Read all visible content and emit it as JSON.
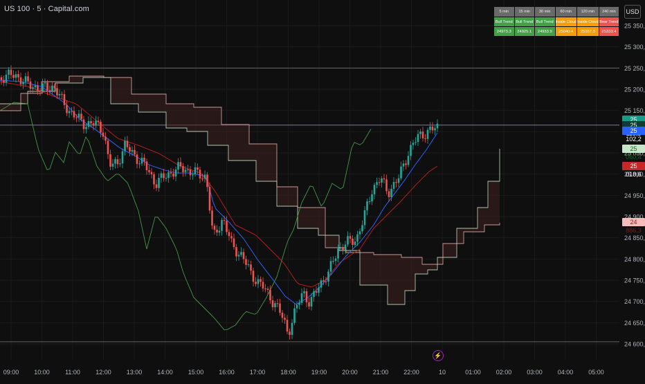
{
  "symbol_title": "US 100 · 5 · Capital.com",
  "currency": "USD",
  "trend_table": {
    "headers": [
      "5 min",
      "15 min",
      "30 min",
      "60 min",
      "120 min",
      "240 min"
    ],
    "labels": [
      "Bull Trend",
      "Bull Trend",
      "Bull Trend",
      "Inside Cloud",
      "Inside Cloud",
      "Bear Trend"
    ],
    "values": [
      "24973.3",
      "24925.1",
      "24933.9",
      "25040.4",
      "25167.3",
      "25333.4"
    ],
    "colors": [
      "#43a047",
      "#43a047",
      "#43a047",
      "#f59e0b",
      "#f59e0b",
      "#ef5350"
    ]
  },
  "price_axis": {
    "ticks": [
      "25 350,0",
      "25 300,0",
      "25 250,0",
      "25 200,0",
      "25 150,0",
      "25 100,0",
      "25 050,0",
      "25 000,0",
      "24 950,0",
      "24 900,0",
      "24 850,0",
      "24 800,0",
      "24 750,0",
      "24 700,0",
      "24 650,0",
      "24 600,0"
    ],
    "tick_values": [
      25350,
      25300,
      25250,
      25200,
      25150,
      25100,
      25050,
      25000,
      24950,
      24900,
      24850,
      24800,
      24750,
      24700,
      24650,
      24600
    ]
  },
  "price_tags": [
    {
      "label": "25 115,5",
      "price": 25128.5,
      "bg": "#169c87",
      "fg": "#ffffff"
    },
    {
      "label": "25 115,5",
      "price": 25115.5,
      "bg": "#0e3b33",
      "fg": "#e8fff8"
    },
    {
      "label": "25 102,2",
      "price": 25102.2,
      "bg": "#2962ff",
      "fg": "#ffffff"
    },
    {
      "label": "25 060,4",
      "price": 25060.4,
      "bg": "#c8e6c9",
      "fg": "#1b5e20"
    },
    {
      "label": "25 018,6",
      "price": 25018.6,
      "bg": "#c62828",
      "fg": "#ffffff"
    },
    {
      "label": "24 886,3",
      "price": 24886.3,
      "bg": "#f8bbbc",
      "fg": "#7f1d1d"
    }
  ],
  "time_axis": [
    "09:00",
    "10:00",
    "11:00",
    "12:00",
    "13:00",
    "14:00",
    "15:00",
    "16:00",
    "17:00",
    "18:00",
    "19:00",
    "20:00",
    "21:00",
    "22:00",
    "10",
    "01:00",
    "02:00",
    "03:00",
    "04:00",
    "05:00"
  ],
  "horizontal_levels": [
    25250,
    25115.5,
    24605
  ],
  "colors": {
    "background": "#0f0f0f",
    "candle_up": "#26a69a",
    "candle_down": "#ef5350",
    "tenkan": "#2962ff",
    "kijun": "#b71c1c",
    "chikou": "#4caf50",
    "span_a": "#c8e6c9",
    "span_b": "#f8bbbc"
  },
  "icons": {
    "session_break": "lightning-icon"
  }
}
